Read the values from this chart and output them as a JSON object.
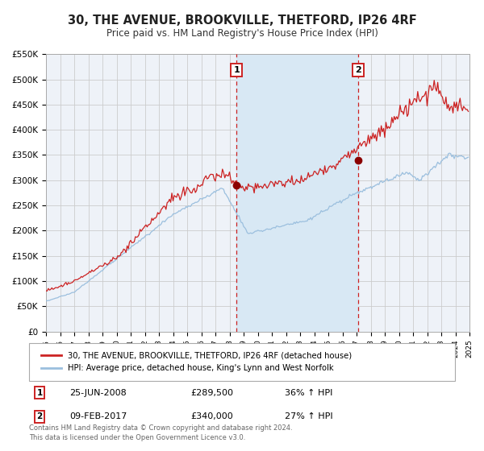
{
  "title": "30, THE AVENUE, BROOKVILLE, THETFORD, IP26 4RF",
  "subtitle": "Price paid vs. HM Land Registry's House Price Index (HPI)",
  "hpi_label": "HPI: Average price, detached house, King's Lynn and West Norfolk",
  "price_label": "30, THE AVENUE, BROOKVILLE, THETFORD, IP26 4RF (detached house)",
  "sale1_date": "25-JUN-2008",
  "sale1_price": 289500,
  "sale1_pct": "36% ↑ HPI",
  "sale2_date": "09-FEB-2017",
  "sale2_price": 340000,
  "sale2_pct": "27% ↑ HPI",
  "sale1_year": 2008.49,
  "sale2_year": 2017.11,
  "start_year": 1995,
  "end_year": 2025,
  "ylim_min": 0,
  "ylim_max": 550000,
  "ylabel_ticks": [
    0,
    50000,
    100000,
    150000,
    200000,
    250000,
    300000,
    350000,
    400000,
    450000,
    500000,
    550000
  ],
  "ylabel_labels": [
    "£0",
    "£50K",
    "£100K",
    "£150K",
    "£200K",
    "£250K",
    "£300K",
    "£350K",
    "£400K",
    "£450K",
    "£500K",
    "£550K"
  ],
  "background_color": "#ffffff",
  "plot_bg_color": "#eef2f8",
  "grid_color": "#cccccc",
  "hpi_color": "#9bbfde",
  "price_color": "#cc2222",
  "marker_color": "#8b0000",
  "dashed_line_color": "#cc2222",
  "shaded_color": "#d8e8f4",
  "footer_text": "Contains HM Land Registry data © Crown copyright and database right 2024.\nThis data is licensed under the Open Government Licence v3.0."
}
